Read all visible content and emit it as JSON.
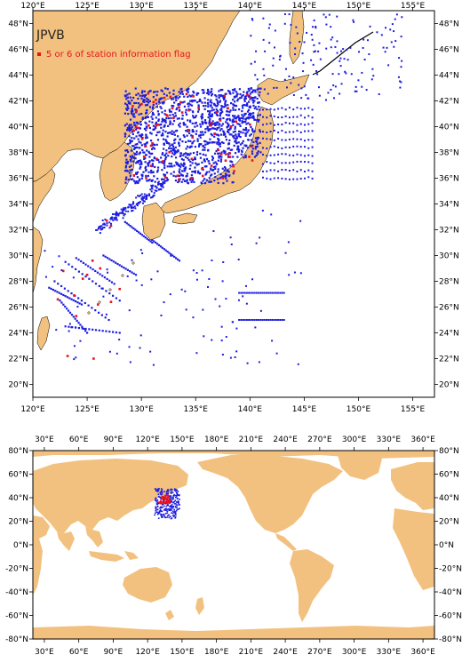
{
  "colors": {
    "land": "#f2c17f",
    "ocean": "#ffffff",
    "station": "#1d1de0",
    "flagged": "#e8141c",
    "frame": "#000000"
  },
  "regional_map": {
    "title": "JPVB",
    "legend_label": "5 or 6 of station information flag",
    "lon_labels": [
      "120°E",
      "125°E",
      "130°E",
      "135°E",
      "140°E",
      "145°E",
      "150°E",
      "155°E"
    ],
    "lat_labels": [
      "20°N",
      "22°N",
      "24°N",
      "26°N",
      "28°N",
      "30°N",
      "32°N",
      "34°N",
      "36°N",
      "38°N",
      "40°N",
      "42°N",
      "44°N",
      "46°N",
      "48°N"
    ],
    "lon_range": [
      120,
      157
    ],
    "lat_range": [
      19,
      49
    ]
  },
  "global_map": {
    "lon_labels": [
      "30°E",
      "60°E",
      "90°E",
      "120°E",
      "150°E",
      "180°E",
      "210°E",
      "240°E",
      "270°E",
      "300°E",
      "330°E",
      "360°E"
    ],
    "lat_labels": [
      "-80°N",
      "-60°N",
      "-40°N",
      "-20°N",
      "0°N",
      "20°N",
      "40°N",
      "60°N",
      "80°N"
    ],
    "lon_range": [
      20,
      370
    ],
    "lat_range": [
      -80,
      80
    ]
  }
}
